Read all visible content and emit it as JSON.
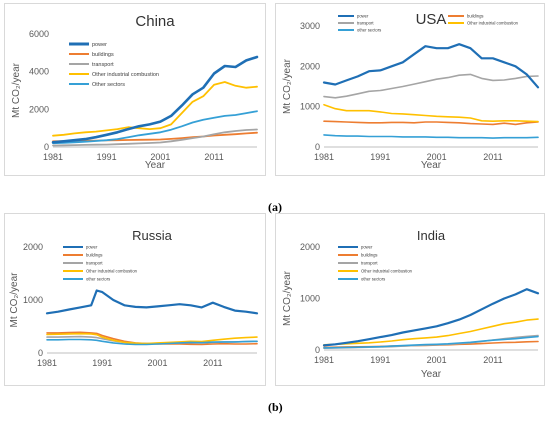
{
  "figure_labels": {
    "a": "(a)",
    "b": "(b)"
  },
  "colors": {
    "power": "#1f6fb5",
    "buildings": "#ed7d31",
    "transport": "#a5a5a5",
    "industry": "#ffc000",
    "other": "#35a0d6"
  },
  "chart_data": [
    {
      "type": "line",
      "title": "China",
      "xlabel": "Year",
      "ylabel": "Mt CO₂/year",
      "x_ticks": [
        "1981",
        "1991",
        "2001",
        "2011"
      ],
      "y_ticks": [
        "0",
        "2000",
        "4000",
        "6000"
      ],
      "xlim": [
        1981,
        2019
      ],
      "ylim": [
        0,
        6000
      ],
      "legend_position": "top-left",
      "x": [
        1981,
        1983,
        1985,
        1987,
        1989,
        1991,
        1993,
        1995,
        1997,
        1999,
        2001,
        2003,
        2005,
        2007,
        2009,
        2011,
        2013,
        2015,
        2017,
        2019
      ],
      "series": [
        {
          "name": "power",
          "color_key": "power",
          "values": [
            250,
            300,
            360,
            420,
            520,
            650,
            780,
            950,
            1100,
            1200,
            1350,
            1650,
            2200,
            2800,
            3150,
            3900,
            4300,
            4250,
            4600,
            4780
          ]
        },
        {
          "name": "buildings",
          "color_key": "buildings",
          "values": [
            300,
            310,
            320,
            330,
            340,
            350,
            360,
            370,
            380,
            390,
            400,
            430,
            470,
            520,
            560,
            610,
            650,
            680,
            720,
            760
          ]
        },
        {
          "name": "transport",
          "color_key": "transport",
          "values": [
            80,
            90,
            100,
            110,
            120,
            130,
            150,
            170,
            190,
            210,
            240,
            300,
            380,
            470,
            560,
            680,
            780,
            850,
            900,
            930
          ]
        },
        {
          "name": "Other industrial combustion",
          "color_key": "industry",
          "values": [
            600,
            650,
            720,
            780,
            820,
            880,
            950,
            1050,
            1000,
            950,
            1000,
            1200,
            1800,
            2400,
            2700,
            3300,
            3450,
            3250,
            3150,
            3200
          ]
        },
        {
          "name": "Other sectors",
          "color_key": "other",
          "values": [
            200,
            220,
            250,
            280,
            320,
            360,
            420,
            520,
            620,
            700,
            780,
            920,
            1100,
            1300,
            1450,
            1550,
            1650,
            1700,
            1800,
            1900
          ]
        }
      ]
    },
    {
      "type": "line",
      "title": "USA",
      "xlabel": "Year",
      "ylabel": "Mt CO₂/year",
      "x_ticks": [
        "1981",
        "1991",
        "2001",
        "2011"
      ],
      "y_ticks": [
        "0",
        "1000",
        "2000",
        "3000"
      ],
      "xlim": [
        1981,
        2019
      ],
      "ylim": [
        0,
        3000
      ],
      "legend_position": "top",
      "x": [
        1981,
        1983,
        1985,
        1987,
        1989,
        1991,
        1993,
        1995,
        1997,
        1999,
        2001,
        2003,
        2005,
        2007,
        2009,
        2011,
        2013,
        2015,
        2017,
        2019
      ],
      "series": [
        {
          "name": "power",
          "color_key": "power",
          "values": [
            1600,
            1550,
            1650,
            1750,
            1880,
            1900,
            2000,
            2100,
            2300,
            2500,
            2450,
            2450,
            2550,
            2450,
            2200,
            2200,
            2100,
            2000,
            1800,
            1480
          ]
        },
        {
          "name": "buildings",
          "color_key": "buildings",
          "values": [
            640,
            630,
            620,
            610,
            600,
            600,
            610,
            610,
            600,
            620,
            620,
            610,
            600,
            580,
            570,
            560,
            590,
            560,
            600,
            620
          ]
        },
        {
          "name": "transport",
          "color_key": "transport",
          "values": [
            1250,
            1220,
            1260,
            1320,
            1380,
            1400,
            1450,
            1500,
            1560,
            1620,
            1680,
            1720,
            1780,
            1800,
            1700,
            1650,
            1660,
            1700,
            1750,
            1760
          ]
        },
        {
          "name": "Other industrial combustion",
          "color_key": "industry",
          "values": [
            1050,
            950,
            900,
            900,
            900,
            870,
            830,
            820,
            800,
            780,
            760,
            750,
            740,
            720,
            650,
            640,
            650,
            650,
            640,
            630
          ]
        },
        {
          "name": "other sectors",
          "color_key": "other",
          "values": [
            300,
            280,
            270,
            270,
            260,
            260,
            260,
            250,
            250,
            250,
            240,
            240,
            230,
            230,
            230,
            220,
            230,
            230,
            230,
            240
          ]
        }
      ]
    },
    {
      "type": "line",
      "title": "Russia",
      "xlabel": "",
      "ylabel": "Mt CO₂/year",
      "x_ticks": [
        "1981",
        "1991",
        "2001",
        "2011"
      ],
      "y_ticks": [
        "0",
        "1000",
        "2000"
      ],
      "xlim": [
        1981,
        2019
      ],
      "ylim": [
        0,
        2000
      ],
      "legend_position": "top-left",
      "x": [
        1981,
        1983,
        1985,
        1987,
        1989,
        1990,
        1991,
        1993,
        1995,
        1997,
        1999,
        2001,
        2003,
        2005,
        2007,
        2009,
        2011,
        2013,
        2015,
        2017,
        2019
      ],
      "series": [
        {
          "name": "power",
          "color_key": "power",
          "values": [
            750,
            780,
            820,
            860,
            900,
            1180,
            1150,
            1000,
            900,
            870,
            860,
            880,
            900,
            920,
            900,
            860,
            950,
            870,
            800,
            780,
            750
          ]
        },
        {
          "name": "buildings",
          "color_key": "buildings",
          "values": [
            380,
            380,
            385,
            390,
            380,
            370,
            330,
            270,
            220,
            190,
            180,
            170,
            170,
            170,
            165,
            160,
            170,
            175,
            170,
            170,
            175
          ]
        },
        {
          "name": "transport",
          "color_key": "transport",
          "values": [
            300,
            300,
            305,
            310,
            300,
            290,
            270,
            230,
            200,
            185,
            180,
            180,
            185,
            190,
            195,
            190,
            200,
            205,
            210,
            215,
            220
          ]
        },
        {
          "name": "Other industrial combustion",
          "color_key": "industry",
          "values": [
            350,
            355,
            360,
            365,
            360,
            345,
            300,
            240,
            200,
            185,
            180,
            190,
            200,
            210,
            220,
            215,
            240,
            260,
            280,
            290,
            300
          ]
        },
        {
          "name": "other sectors",
          "color_key": "other",
          "values": [
            250,
            250,
            255,
            255,
            250,
            240,
            220,
            190,
            170,
            160,
            160,
            170,
            180,
            190,
            200,
            195,
            205,
            210,
            210,
            215,
            220
          ]
        }
      ]
    },
    {
      "type": "line",
      "title": "India",
      "xlabel": "Year",
      "ylabel": "Mt CO₂/year",
      "x_ticks": [
        "1981",
        "1991",
        "2001",
        "2011"
      ],
      "y_ticks": [
        "0",
        "1000",
        "2000"
      ],
      "xlim": [
        1981,
        2019
      ],
      "ylim": [
        0,
        2000
      ],
      "legend_position": "top-left",
      "x": [
        1981,
        1983,
        1985,
        1987,
        1989,
        1991,
        1993,
        1995,
        1997,
        1999,
        2001,
        2003,
        2005,
        2007,
        2009,
        2011,
        2013,
        2015,
        2017,
        2019
      ],
      "series": [
        {
          "name": "power",
          "color_key": "power",
          "values": [
            90,
            110,
            140,
            170,
            210,
            250,
            290,
            340,
            380,
            420,
            460,
            520,
            590,
            680,
            790,
            900,
            1000,
            1080,
            1180,
            1100
          ]
        },
        {
          "name": "buildings",
          "color_key": "buildings",
          "values": [
            50,
            55,
            60,
            62,
            65,
            70,
            75,
            80,
            85,
            90,
            95,
            100,
            110,
            115,
            125,
            135,
            145,
            150,
            160,
            165
          ]
        },
        {
          "name": "transport",
          "color_key": "transport",
          "values": [
            35,
            40,
            45,
            50,
            55,
            60,
            65,
            75,
            85,
            95,
            100,
            110,
            125,
            140,
            165,
            195,
            220,
            245,
            265,
            280
          ]
        },
        {
          "name": "Other industrial combustion",
          "color_key": "industry",
          "values": [
            100,
            110,
            120,
            130,
            140,
            155,
            175,
            200,
            220,
            235,
            250,
            280,
            320,
            360,
            410,
            460,
            510,
            540,
            580,
            600
          ]
        },
        {
          "name": "other sectors",
          "color_key": "other",
          "values": [
            40,
            45,
            50,
            55,
            60,
            65,
            75,
            85,
            95,
            105,
            110,
            120,
            135,
            150,
            170,
            190,
            205,
            220,
            240,
            260
          ]
        }
      ]
    }
  ]
}
